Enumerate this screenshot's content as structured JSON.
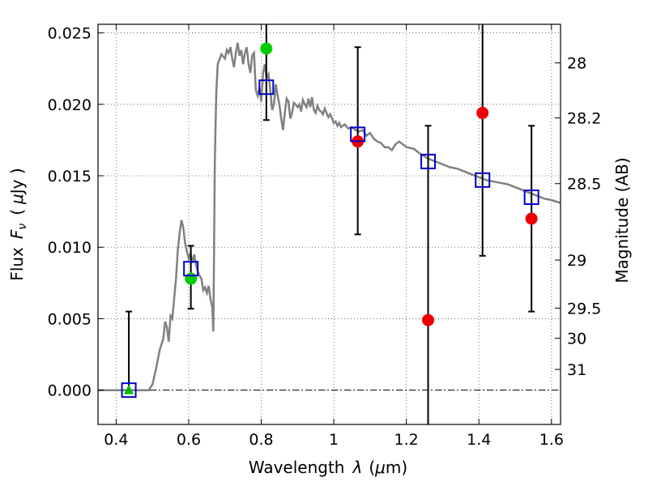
{
  "chart_data": {
    "type": "scatter",
    "title": "",
    "xlabel_parts": [
      "Wavelength",
      "λ",
      "(",
      "μ",
      "m)"
    ],
    "ylabel_parts": [
      "Flux",
      "F",
      "ν",
      "(",
      "μ",
      "Jy )"
    ],
    "right_ylabel": "Magnitude (AB)",
    "xlim": [
      0.35,
      1.625
    ],
    "ylim": [
      -0.0024,
      0.0256
    ],
    "grid": true,
    "x_ticks": [
      {
        "value": 0.4,
        "label": "0.4"
      },
      {
        "value": 0.6,
        "label": "0.6"
      },
      {
        "value": 0.8,
        "label": "0.8"
      },
      {
        "value": 1.0,
        "label": "1"
      },
      {
        "value": 1.2,
        "label": "1.2"
      },
      {
        "value": 1.4,
        "label": "1.4"
      },
      {
        "value": 1.6,
        "label": "1.6"
      }
    ],
    "y_ticks": [
      {
        "value": 0.0,
        "label": "0.000"
      },
      {
        "value": 0.005,
        "label": "0.005"
      },
      {
        "value": 0.01,
        "label": "0.010"
      },
      {
        "value": 0.015,
        "label": "0.015"
      },
      {
        "value": 0.02,
        "label": "0.020"
      },
      {
        "value": 0.025,
        "label": "0.025"
      }
    ],
    "right_ticks": [
      {
        "flux": 0.0229,
        "label": "28"
      },
      {
        "flux": 0.01905,
        "label": "28.2"
      },
      {
        "flux": 0.01445,
        "label": "28.5"
      },
      {
        "flux": 0.0091,
        "label": "29"
      },
      {
        "flux": 0.00574,
        "label": "29.5"
      },
      {
        "flux": 0.00363,
        "label": "30"
      },
      {
        "flux": 0.00145,
        "label": "31"
      }
    ],
    "sed_model": {
      "color": "#808080",
      "points": [
        [
          0.35,
          0.0
        ],
        [
          0.49,
          0.0
        ],
        [
          0.5,
          0.0004
        ],
        [
          0.51,
          0.0015
        ],
        [
          0.52,
          0.0028
        ],
        [
          0.53,
          0.0036
        ],
        [
          0.535,
          0.0048
        ],
        [
          0.54,
          0.0044
        ],
        [
          0.545,
          0.0034
        ],
        [
          0.55,
          0.0052
        ],
        [
          0.555,
          0.005
        ],
        [
          0.56,
          0.0064
        ],
        [
          0.565,
          0.0078
        ],
        [
          0.57,
          0.0098
        ],
        [
          0.575,
          0.011
        ],
        [
          0.58,
          0.0119
        ],
        [
          0.585,
          0.0114
        ],
        [
          0.59,
          0.0103
        ],
        [
          0.595,
          0.0097
        ],
        [
          0.6,
          0.0092
        ],
        [
          0.605,
          0.0096
        ],
        [
          0.61,
          0.0089
        ],
        [
          0.615,
          0.0095
        ],
        [
          0.62,
          0.0088
        ],
        [
          0.625,
          0.0083
        ],
        [
          0.63,
          0.008
        ],
        [
          0.635,
          0.0078
        ],
        [
          0.64,
          0.007
        ],
        [
          0.645,
          0.0072
        ],
        [
          0.65,
          0.0068
        ],
        [
          0.655,
          0.0073
        ],
        [
          0.66,
          0.0064
        ],
        [
          0.665,
          0.0058
        ],
        [
          0.668,
          0.0041
        ],
        [
          0.672,
          0.016
        ],
        [
          0.676,
          0.0208
        ],
        [
          0.68,
          0.0228
        ],
        [
          0.69,
          0.0235
        ],
        [
          0.7,
          0.0232
        ],
        [
          0.705,
          0.0238
        ],
        [
          0.71,
          0.0236
        ],
        [
          0.715,
          0.024
        ],
        [
          0.72,
          0.0232
        ],
        [
          0.725,
          0.0226
        ],
        [
          0.73,
          0.0236
        ],
        [
          0.735,
          0.0243
        ],
        [
          0.74,
          0.0234
        ],
        [
          0.745,
          0.0238
        ],
        [
          0.75,
          0.0228
        ],
        [
          0.755,
          0.0236
        ],
        [
          0.76,
          0.024
        ],
        [
          0.765,
          0.0228
        ],
        [
          0.77,
          0.0222
        ],
        [
          0.775,
          0.0234
        ],
        [
          0.78,
          0.0236
        ],
        [
          0.785,
          0.021
        ],
        [
          0.79,
          0.0206
        ],
        [
          0.795,
          0.0212
        ],
        [
          0.8,
          0.0202
        ],
        [
          0.805,
          0.0222
        ],
        [
          0.81,
          0.0228
        ],
        [
          0.815,
          0.0218
        ],
        [
          0.82,
          0.0221
        ],
        [
          0.825,
          0.021
        ],
        [
          0.83,
          0.0196
        ],
        [
          0.835,
          0.02
        ],
        [
          0.84,
          0.0214
        ],
        [
          0.845,
          0.0206
        ],
        [
          0.85,
          0.02
        ],
        [
          0.855,
          0.019
        ],
        [
          0.86,
          0.0182
        ],
        [
          0.865,
          0.0194
        ],
        [
          0.87,
          0.0204
        ],
        [
          0.875,
          0.0202
        ],
        [
          0.88,
          0.019
        ],
        [
          0.885,
          0.0194
        ],
        [
          0.89,
          0.0201
        ],
        [
          0.895,
          0.02
        ],
        [
          0.9,
          0.0198
        ],
        [
          0.905,
          0.02
        ],
        [
          0.91,
          0.0195
        ],
        [
          0.915,
          0.0203
        ],
        [
          0.92,
          0.02
        ],
        [
          0.925,
          0.0198
        ],
        [
          0.93,
          0.0204
        ],
        [
          0.935,
          0.0198
        ],
        [
          0.94,
          0.0205
        ],
        [
          0.945,
          0.0196
        ],
        [
          0.95,
          0.0194
        ],
        [
          0.955,
          0.0199
        ],
        [
          0.96,
          0.0196
        ],
        [
          0.965,
          0.0195
        ],
        [
          0.97,
          0.0193
        ],
        [
          0.975,
          0.0197
        ],
        [
          0.98,
          0.0194
        ],
        [
          0.985,
          0.0191
        ],
        [
          0.99,
          0.0193
        ],
        [
          0.995,
          0.019
        ],
        [
          1.0,
          0.0187
        ],
        [
          1.005,
          0.0188
        ],
        [
          1.01,
          0.0185
        ],
        [
          1.015,
          0.0187
        ],
        [
          1.02,
          0.0184
        ],
        [
          1.03,
          0.0186
        ],
        [
          1.04,
          0.0183
        ],
        [
          1.05,
          0.0184
        ],
        [
          1.06,
          0.0182
        ],
        [
          1.07,
          0.0181
        ],
        [
          1.08,
          0.0182
        ],
        [
          1.09,
          0.0178
        ],
        [
          1.1,
          0.018
        ],
        [
          1.11,
          0.0176
        ],
        [
          1.12,
          0.0174
        ],
        [
          1.13,
          0.0173
        ],
        [
          1.14,
          0.017
        ],
        [
          1.15,
          0.017
        ],
        [
          1.16,
          0.0168
        ],
        [
          1.17,
          0.0172
        ],
        [
          1.18,
          0.0174
        ],
        [
          1.19,
          0.0172
        ],
        [
          1.2,
          0.017
        ],
        [
          1.22,
          0.0169
        ],
        [
          1.24,
          0.0165
        ],
        [
          1.26,
          0.0162
        ],
        [
          1.28,
          0.016
        ],
        [
          1.3,
          0.0158
        ],
        [
          1.32,
          0.0156
        ],
        [
          1.34,
          0.0155
        ],
        [
          1.36,
          0.0153
        ],
        [
          1.38,
          0.0151
        ],
        [
          1.4,
          0.0149
        ],
        [
          1.42,
          0.0147
        ],
        [
          1.44,
          0.0146
        ],
        [
          1.46,
          0.0145
        ],
        [
          1.48,
          0.0144
        ],
        [
          1.5,
          0.0142
        ],
        [
          1.52,
          0.014
        ],
        [
          1.54,
          0.0138
        ],
        [
          1.56,
          0.0136
        ],
        [
          1.58,
          0.0134
        ],
        [
          1.6,
          0.0133
        ],
        [
          1.625,
          0.0131
        ]
      ]
    },
    "model_photometry": {
      "marker": "open-square",
      "color": "#0000cc",
      "points": [
        {
          "x": 0.435,
          "y": 0.0
        },
        {
          "x": 0.606,
          "y": 0.0085
        },
        {
          "x": 0.814,
          "y": 0.0212
        },
        {
          "x": 1.066,
          "y": 0.0179
        },
        {
          "x": 1.26,
          "y": 0.016
        },
        {
          "x": 1.41,
          "y": 0.0147
        },
        {
          "x": 1.545,
          "y": 0.0135
        }
      ]
    },
    "observed_photometry": [
      {
        "x": 0.435,
        "y": 0.0,
        "err_low": 0.0,
        "err_high": 0.0055,
        "marker": "triangle",
        "color": "#00bb00"
      },
      {
        "x": 0.606,
        "y": 0.0078,
        "err_low": 0.0021,
        "err_high": 0.0023,
        "marker": "circle",
        "color": "#00cc00"
      },
      {
        "x": 0.814,
        "y": 0.0239,
        "err_low": 0.005,
        "err_high": 0.005,
        "marker": "circle",
        "color": "#00cc00"
      },
      {
        "x": 1.066,
        "y": 0.0174,
        "err_low": 0.0065,
        "err_high": 0.0066,
        "marker": "circle",
        "color": "#ee0000"
      },
      {
        "x": 1.26,
        "y": 0.0049,
        "err_low": 0.0136,
        "err_high": 0.0136,
        "marker": "circle",
        "color": "#ee0000"
      },
      {
        "x": 1.41,
        "y": 0.0194,
        "err_low": 0.01,
        "err_high": 0.01,
        "marker": "circle",
        "color": "#ee0000"
      },
      {
        "x": 1.545,
        "y": 0.012,
        "err_low": 0.0065,
        "err_high": 0.0065,
        "marker": "circle",
        "color": "#ee0000"
      }
    ]
  }
}
